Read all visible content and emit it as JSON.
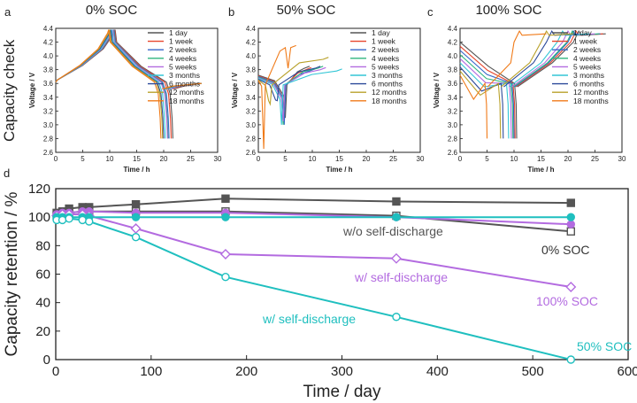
{
  "chart_data": [
    {
      "panel": "a",
      "type": "line",
      "title": "0% SOC",
      "xlabel": "Time / h",
      "ylabel": "Voltage / V",
      "xlim": [
        0,
        30
      ],
      "ylim": [
        2.6,
        4.4
      ],
      "xticks": [
        0,
        5,
        10,
        15,
        20,
        25,
        30
      ],
      "yticks": [
        2.6,
        2.8,
        3.0,
        3.2,
        3.4,
        3.6,
        3.8,
        4.0,
        4.2,
        4.4
      ],
      "series": [
        {
          "name": "1 day",
          "color": "#555555",
          "peak_time": 11.0,
          "end_time": 21.7
        },
        {
          "name": "1 week",
          "color": "#e8452c",
          "peak_time": 10.9,
          "end_time": 21.4
        },
        {
          "name": "2 weeks",
          "color": "#3566c9",
          "peak_time": 10.8,
          "end_time": 21.0
        },
        {
          "name": "4 weeks",
          "color": "#2fb57e",
          "peak_time": 10.7,
          "end_time": 20.8
        },
        {
          "name": "5 weeks",
          "color": "#b36be0",
          "peak_time": 10.6,
          "end_time": 20.7
        },
        {
          "name": "3 months",
          "color": "#33c6d6",
          "peak_time": 10.4,
          "end_time": 20.3
        },
        {
          "name": "6 months",
          "color": "#2c4a9a",
          "peak_time": 10.2,
          "end_time": 20.0
        },
        {
          "name": "12 months",
          "color": "#b8a12a",
          "peak_time": 10.0,
          "end_time": 19.8
        },
        {
          "name": "18 months",
          "color": "#f07a18",
          "peak_time": 9.8,
          "end_time": 19.5
        }
      ]
    },
    {
      "panel": "b",
      "type": "line",
      "title": "50% SOC",
      "xlabel": "Time / h",
      "ylabel": "Voltage / V",
      "xlim": [
        0,
        30
      ],
      "ylim": [
        2.6,
        4.4
      ],
      "xticks": [
        0,
        5,
        10,
        15,
        20,
        25,
        30
      ],
      "yticks": [
        2.6,
        2.8,
        3.0,
        3.2,
        3.4,
        3.6,
        3.8,
        4.0,
        4.2,
        4.4
      ],
      "series": [
        {
          "name": "1 day",
          "color": "#555555",
          "dip_time": 5.0,
          "end_time": 9.5
        },
        {
          "name": "1 week",
          "color": "#e8452c",
          "dip_time": 4.8,
          "end_time": 9.8
        },
        {
          "name": "2 weeks",
          "color": "#3566c9",
          "dip_time": 4.8,
          "end_time": 10.5
        },
        {
          "name": "4 weeks",
          "color": "#2fb57e",
          "dip_time": 4.6,
          "end_time": 12.0
        },
        {
          "name": "5 weeks",
          "color": "#b36be0",
          "dip_time": 4.6,
          "end_time": 12.5
        },
        {
          "name": "3 months",
          "color": "#33c6d6",
          "dip_time": 4.3,
          "end_time": 15.5
        },
        {
          "name": "6 months",
          "color": "#2c4a9a",
          "dip_time": 3.5,
          "end_time": 11.5
        },
        {
          "name": "12 months",
          "color": "#b8a12a",
          "dip_time": 2.2,
          "end_time": 13.0
        },
        {
          "name": "18 months",
          "color": "#f07a18",
          "dip_time": 1.0,
          "end_time": 7.0
        }
      ]
    },
    {
      "panel": "c",
      "type": "line",
      "title": "100% SOC",
      "xlabel": "Time / h",
      "ylabel": "Voltage / V",
      "xlim": [
        0,
        30
      ],
      "ylim": [
        2.6,
        4.4
      ],
      "xticks": [
        0,
        5,
        10,
        15,
        20,
        25,
        30
      ],
      "yticks": [
        2.6,
        2.8,
        3.0,
        3.2,
        3.4,
        3.6,
        3.8,
        4.0,
        4.2,
        4.4
      ],
      "series": [
        {
          "name": "1 day",
          "color": "#555555",
          "dip_time": 10.5,
          "end_time": 27.0
        },
        {
          "name": "1 week",
          "color": "#e8452c",
          "dip_time": 10.2,
          "end_time": 26.5
        },
        {
          "name": "2 weeks",
          "color": "#3566c9",
          "dip_time": 10.0,
          "end_time": 26.0
        },
        {
          "name": "4 weeks",
          "color": "#2fb57e",
          "dip_time": 9.8,
          "end_time": 25.8
        },
        {
          "name": "5 weeks",
          "color": "#b36be0",
          "dip_time": 9.5,
          "end_time": 25.0
        },
        {
          "name": "3 months",
          "color": "#33c6d6",
          "dip_time": 9.0,
          "end_time": 24.0
        },
        {
          "name": "6 months",
          "color": "#2c4a9a",
          "dip_time": 8.0,
          "end_time": 22.0
        },
        {
          "name": "12 months",
          "color": "#b8a12a",
          "dip_time": 7.5,
          "end_time": 21.0
        },
        {
          "name": "18 months",
          "color": "#f07a18",
          "dip_time": 5.0,
          "end_time": 16.0
        }
      ]
    },
    {
      "panel": "d",
      "type": "line",
      "xlabel": "Time / day",
      "ylabel": "Capacity retention / %",
      "xlim": [
        0,
        600
      ],
      "ylim": [
        0,
        120
      ],
      "xticks": [
        0,
        100,
        200,
        300,
        400,
        500,
        600
      ],
      "yticks": [
        0,
        20,
        40,
        60,
        80,
        100,
        120
      ],
      "series": [
        {
          "name": "0% SOC w/o self-discharge",
          "color": "#555555",
          "marker": "square",
          "filled": true,
          "x": [
            1,
            7,
            14,
            28,
            35,
            84,
            178,
            357,
            540
          ],
          "y": [
            103,
            104,
            106,
            107,
            107,
            109,
            113,
            111,
            110
          ]
        },
        {
          "name": "0% SOC w/ self-discharge",
          "color": "#555555",
          "marker": "square",
          "filled": false,
          "x": [
            1,
            7,
            14,
            28,
            35,
            84,
            178,
            357,
            540
          ],
          "y": [
            101,
            102,
            103,
            104,
            104,
            104,
            104,
            101,
            90
          ]
        },
        {
          "name": "100% SOC w/o self-discharge",
          "color": "#b36be0",
          "marker": "circle",
          "filled": true,
          "x": [
            1,
            7,
            14,
            28,
            35,
            84,
            178,
            357,
            540
          ],
          "y": [
            102,
            103,
            103,
            104,
            104,
            103,
            103,
            100,
            95
          ]
        },
        {
          "name": "100% SOC w/ self-discharge",
          "color": "#b36be0",
          "marker": "diamond",
          "filled": false,
          "x": [
            1,
            7,
            14,
            28,
            35,
            84,
            178,
            357,
            540
          ],
          "y": [
            101,
            102,
            102,
            102,
            101,
            92,
            74,
            71,
            51
          ]
        },
        {
          "name": "50% SOC w/o self-discharge",
          "color": "#1fbfbf",
          "marker": "circle",
          "filled": true,
          "x": [
            1,
            7,
            14,
            28,
            35,
            84,
            178,
            357,
            540
          ],
          "y": [
            100,
            100,
            100,
            100,
            100,
            100,
            100,
            100,
            100
          ]
        },
        {
          "name": "50% SOC w/ self-discharge",
          "color": "#1fbfbf",
          "marker": "circle",
          "filled": false,
          "x": [
            1,
            7,
            14,
            28,
            35,
            84,
            178,
            357,
            540
          ],
          "y": [
            98,
            98,
            99,
            98,
            97,
            86,
            58,
            30,
            0
          ]
        }
      ],
      "annotations": [
        {
          "text": "w/o self-discharge",
          "color": "#555555"
        },
        {
          "text": "0% SOC",
          "color": "#333333"
        },
        {
          "text": "w/ self-discharge",
          "color": "#b36be0"
        },
        {
          "text": "100% SOC",
          "color": "#b36be0"
        },
        {
          "text": "w/ self-discharge",
          "color": "#1fbfbf"
        },
        {
          "text": "50% SOC",
          "color": "#1fbfbf"
        }
      ]
    }
  ],
  "figure": {
    "row_label": "Capacity check",
    "panel_letters": [
      "a",
      "b",
      "c",
      "d"
    ]
  }
}
